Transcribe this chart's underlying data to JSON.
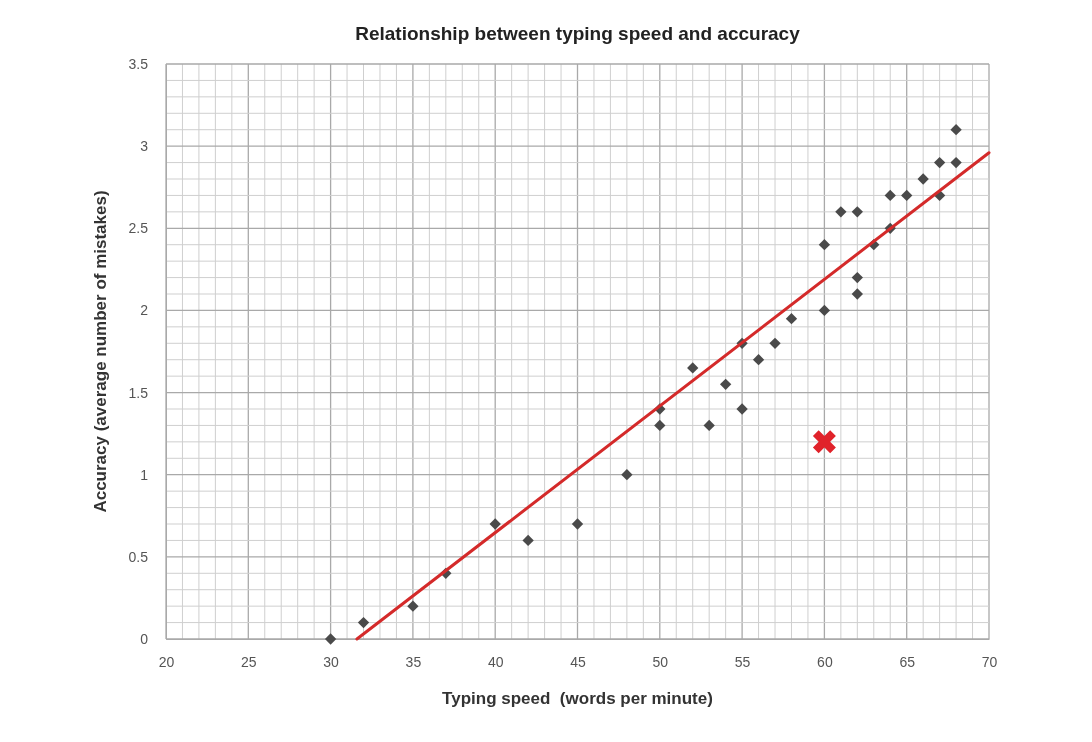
{
  "chart_data": {
    "type": "scatter",
    "title": "Relationship between typing speed and accuracy",
    "xlabel": "Typing speed  (words per minute)",
    "ylabel": "Accuracy (average number of mistakes)",
    "xlim": [
      20,
      70
    ],
    "ylim": [
      0,
      3.5
    ],
    "xticks": [
      20,
      {
        "value": 21,
        "label": null
      },
      {
        "value": 22,
        "label": null
      },
      {
        "value": 23,
        "label": null
      },
      {
        "value": 24,
        "label": null
      },
      25,
      {
        "value": 26,
        "label": null
      },
      {
        "value": 27,
        "label": null
      },
      {
        "value": 28,
        "label": null
      },
      {
        "value": 29,
        "label": null
      },
      30,
      {
        "value": 31,
        "label": null
      },
      {
        "value": 32,
        "label": null
      },
      {
        "value": 33,
        "label": null
      },
      {
        "value": 34,
        "label": null
      },
      35,
      {
        "value": 36,
        "label": null
      },
      {
        "value": 37,
        "label": null
      },
      {
        "value": 38,
        "label": null
      },
      {
        "value": 39,
        "label": null
      },
      40,
      {
        "value": 41,
        "label": null
      },
      {
        "value": 42,
        "label": null
      },
      {
        "value": 43,
        "label": null
      },
      {
        "value": 44,
        "label": null
      },
      45,
      {
        "value": 46,
        "label": null
      },
      {
        "value": 47,
        "label": null
      },
      {
        "value": 48,
        "label": null
      },
      {
        "value": 49,
        "label": null
      },
      50,
      {
        "value": 51,
        "label": null
      },
      {
        "value": 52,
        "label": null
      },
      {
        "value": 53,
        "label": null
      },
      {
        "value": 54,
        "label": null
      },
      55,
      {
        "value": 56,
        "label": null
      },
      {
        "value": 57,
        "label": null
      },
      {
        "value": 58,
        "label": null
      },
      {
        "value": 59,
        "label": null
      },
      60,
      {
        "value": 61,
        "label": null
      },
      {
        "value": 62,
        "label": null
      },
      {
        "value": 63,
        "label": null
      },
      {
        "value": 64,
        "label": null
      },
      65,
      {
        "value": 66,
        "label": null
      },
      {
        "value": 67,
        "label": null
      },
      {
        "value": 68,
        "label": null
      },
      {
        "value": 69,
        "label": null
      },
      70
    ],
    "yticks": [
      0,
      {
        "value": 0.1,
        "label": null
      },
      {
        "value": 0.2,
        "label": null
      },
      {
        "value": 0.3,
        "label": null
      },
      {
        "value": 0.4,
        "label": null
      },
      0.5,
      {
        "value": 0.6,
        "label": null
      },
      {
        "value": 0.7,
        "label": null
      },
      {
        "value": 0.8,
        "label": null
      },
      {
        "value": 0.9,
        "label": null
      },
      1,
      {
        "value": 1.1,
        "label": null
      },
      {
        "value": 1.2,
        "label": null
      },
      {
        "value": 1.3,
        "label": null
      },
      {
        "value": 1.4,
        "label": null
      },
      1.5,
      {
        "value": 1.6,
        "label": null
      },
      {
        "value": 1.7,
        "label": null
      },
      {
        "value": 1.8,
        "label": null
      },
      {
        "value": 1.9,
        "label": null
      },
      2,
      {
        "value": 2.1,
        "label": null
      },
      {
        "value": 2.2,
        "label": null
      },
      {
        "value": 2.3,
        "label": null
      },
      {
        "value": 2.4,
        "label": null
      },
      2.5,
      {
        "value": 2.6,
        "label": null
      },
      {
        "value": 2.7,
        "label": null
      },
      {
        "value": 2.8,
        "label": null
      },
      {
        "value": 2.9,
        "label": null
      },
      3,
      {
        "value": 3.1,
        "label": null
      },
      {
        "value": 3.2,
        "label": null
      },
      {
        "value": 3.3,
        "label": null
      },
      {
        "value": 3.4,
        "label": null
      },
      3.5
    ],
    "grid": true,
    "series": [
      {
        "color": "#4a4a4a",
        "marker": "diamond",
        "x": [
          30,
          32,
          35,
          37,
          40,
          42,
          45,
          48,
          50,
          50,
          52,
          53,
          54,
          55,
          55,
          56,
          57,
          58,
          60,
          60,
          61,
          62,
          62,
          62,
          63,
          64,
          64,
          65,
          66,
          67,
          67,
          68,
          68
        ],
        "values": [
          0,
          0.1,
          0.2,
          0.4,
          0.7,
          0.6,
          0.7,
          1.0,
          1.4,
          1.3,
          1.65,
          1.3,
          1.55,
          1.8,
          1.4,
          1.7,
          1.8,
          1.95,
          2.4,
          2.0,
          2.6,
          2.6,
          2.2,
          2.1,
          2.4,
          2.7,
          2.5,
          2.7,
          2.8,
          2.9,
          2.7,
          3.1,
          2.9
        ]
      },
      {
        "color": "#e0222a",
        "marker": "cross",
        "x": [
          60
        ],
        "values": [
          1.2
        ]
      },
      {
        "type": "line",
        "color": "#d42a2a",
        "line_style": "solid",
        "x": [
          31.6,
          70
        ],
        "values": [
          0,
          2.96
        ]
      }
    ]
  }
}
